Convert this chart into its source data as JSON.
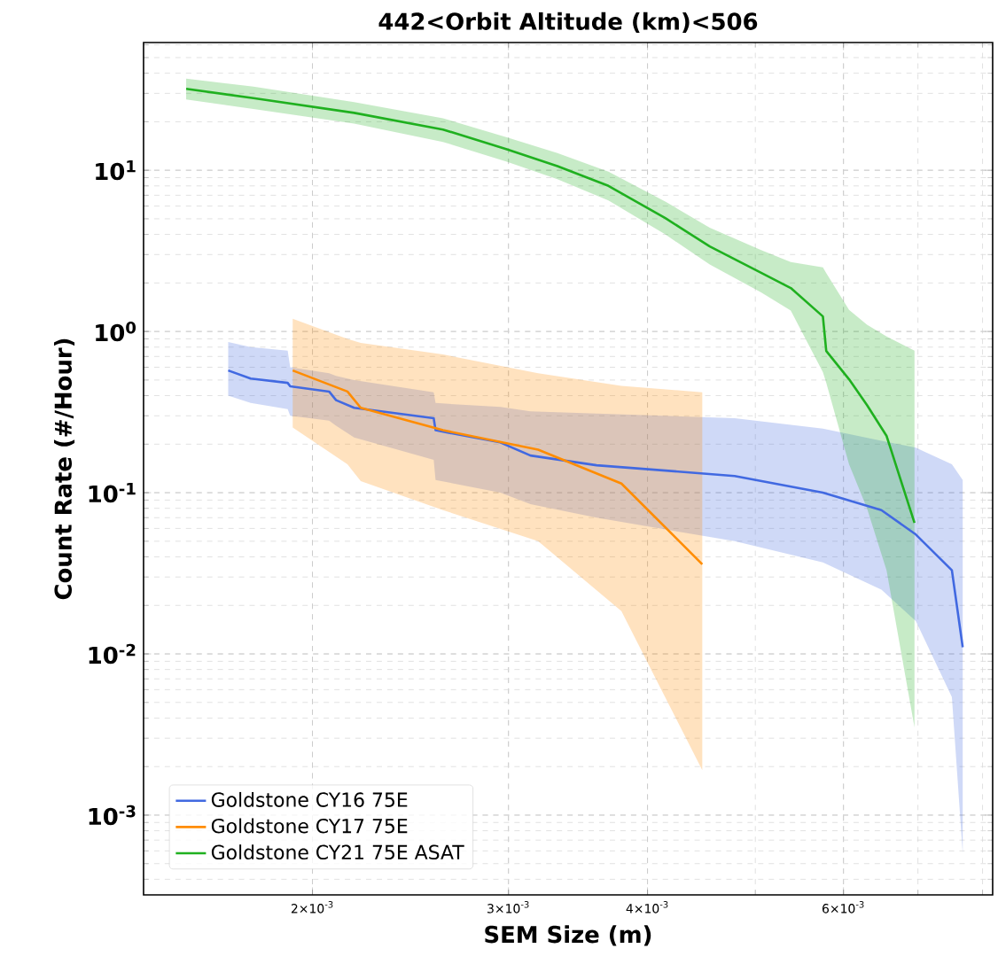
{
  "chart_data": {
    "type": "line",
    "title": "442<Orbit Altitude (km)<506",
    "xlabel": "SEM Size (m)",
    "ylabel": "Count Rate (#/Hour)",
    "log": "xy",
    "grid": true,
    "legend": "bottom left",
    "xlim": [
      0.00141,
      0.00817
    ],
    "ylim": [
      0.00032,
      62
    ],
    "xticks": [
      {
        "value": 0.002,
        "label": "2×10$^{-3}$"
      },
      {
        "value": 0.003,
        "label": "3×10$^{-3}$"
      },
      {
        "value": 0.004,
        "label": "4×10$^{-3}$"
      },
      {
        "value": 0.006,
        "label": "6×10$^{-3}$"
      }
    ],
    "yticks": [
      {
        "value": 0.001,
        "label": "10$^{-3}$"
      },
      {
        "value": 0.01,
        "label": "10$^{-2}$"
      },
      {
        "value": 0.1,
        "label": "10$^{-1}$"
      },
      {
        "value": 1,
        "label": "10$^{0}$"
      },
      {
        "value": 10,
        "label": "10$^{1}$"
      }
    ],
    "series": [
      {
        "name": "Goldstone CY16 75E",
        "color": "#4169e1",
        "x": [
          0.00168,
          0.00176,
          0.0019,
          0.00191,
          0.00207,
          0.0021,
          0.00218,
          0.00257,
          0.00258,
          0.00295,
          0.00314,
          0.0036,
          0.00479,
          0.00575,
          0.00649,
          0.00697,
          0.00751,
          0.00768
        ],
        "values": [
          0.573,
          0.51,
          0.48,
          0.457,
          0.424,
          0.375,
          0.336,
          0.29,
          0.244,
          0.205,
          0.17,
          0.148,
          0.127,
          0.1,
          0.078,
          0.055,
          0.033,
          0.011
        ],
        "upper": [
          0.86,
          0.8,
          0.76,
          0.6,
          0.55,
          0.53,
          0.5,
          0.42,
          0.36,
          0.34,
          0.32,
          0.31,
          0.29,
          0.25,
          0.21,
          0.19,
          0.15,
          0.12
        ],
        "lower": [
          0.4,
          0.36,
          0.33,
          0.3,
          0.28,
          0.26,
          0.22,
          0.16,
          0.12,
          0.1,
          0.085,
          0.07,
          0.05,
          0.037,
          0.025,
          0.016,
          0.0054,
          0.00058
        ]
      },
      {
        "name": "Goldstone CY17 75E",
        "color": "#ff8c00",
        "x": [
          0.00192,
          0.00215,
          0.00221,
          0.00262,
          0.00319,
          0.00379,
          0.00448
        ],
        "values": [
          0.573,
          0.424,
          0.336,
          0.244,
          0.185,
          0.114,
          0.036
        ],
        "upper": [
          1.2,
          0.9,
          0.85,
          0.72,
          0.55,
          0.46,
          0.42
        ],
        "lower": [
          0.254,
          0.15,
          0.118,
          0.078,
          0.05,
          0.0184,
          0.0019
        ]
      },
      {
        "name": "Goldstone CY21 75E ASAT",
        "color": "#1fb01f",
        "x": [
          0.00154,
          0.00177,
          0.00218,
          0.00262,
          0.00299,
          0.00332,
          0.00369,
          0.00415,
          0.00455,
          0.00506,
          0.00538,
          0.00575,
          0.00579,
          0.00607,
          0.0063,
          0.00656,
          0.00695
        ],
        "values": [
          32,
          28,
          22.7,
          17.9,
          13.5,
          10.6,
          8.0,
          5.05,
          3.37,
          2.31,
          1.86,
          1.24,
          0.757,
          0.505,
          0.349,
          0.225,
          0.065
        ],
        "upper": [
          37,
          33,
          26.5,
          21,
          16,
          12.8,
          9.8,
          6.4,
          4.4,
          3.2,
          2.7,
          2.5,
          2.3,
          1.36,
          1.1,
          0.93,
          0.76
        ],
        "lower": [
          27.5,
          24,
          19.5,
          15,
          11.3,
          8.8,
          6.5,
          4.0,
          2.6,
          1.75,
          1.35,
          0.56,
          0.48,
          0.15,
          0.08,
          0.033,
          0.0035
        ]
      }
    ]
  }
}
